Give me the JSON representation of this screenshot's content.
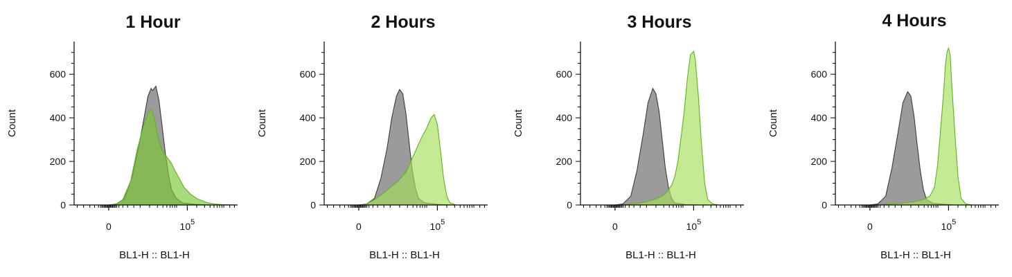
{
  "figure": {
    "panels": [
      {
        "title": "1 Hour"
      },
      {
        "title": "2 Hours"
      },
      {
        "title": "3 Hours"
      },
      {
        "title": "4 Hours"
      }
    ]
  },
  "chart_data": [
    {
      "type": "area",
      "title": "1 Hour",
      "xlabel": "BL1-H :: BL1-H",
      "ylabel": "Count",
      "x_scale": "biexponential",
      "xticks": [
        {
          "label": "0",
          "exp": ""
        },
        {
          "label": "10",
          "exp": "5"
        }
      ],
      "yticks": [
        0,
        200,
        400,
        600
      ],
      "ylim": [
        0,
        750
      ],
      "colors": {
        "control": "#8a8a8a",
        "stained": "#7cc832"
      },
      "series": [
        {
          "role": "control",
          "points": [
            [
              -22,
              0
            ],
            [
              0,
              0
            ],
            [
              5,
              5
            ],
            [
              10,
              30
            ],
            [
              15,
              130
            ],
            [
              20,
              300
            ],
            [
              23,
              420
            ],
            [
              25,
              500
            ],
            [
              27,
              535
            ],
            [
              28,
              525
            ],
            [
              30,
              545
            ],
            [
              32,
              480
            ],
            [
              34,
              360
            ],
            [
              36,
              240
            ],
            [
              38,
              140
            ],
            [
              40,
              70
            ],
            [
              43,
              30
            ],
            [
              47,
              10
            ],
            [
              55,
              3
            ],
            [
              65,
              0
            ],
            [
              82,
              0
            ]
          ]
        },
        {
          "role": "stained",
          "points": [
            [
              -22,
              0
            ],
            [
              0,
              0
            ],
            [
              5,
              4
            ],
            [
              9,
              25
            ],
            [
              14,
              110
            ],
            [
              18,
              250
            ],
            [
              22,
              360
            ],
            [
              25,
              420
            ],
            [
              27,
              440
            ],
            [
              29,
              400
            ],
            [
              31,
              320
            ],
            [
              34,
              250
            ],
            [
              37,
              220
            ],
            [
              40,
              190
            ],
            [
              42,
              160
            ],
            [
              45,
              120
            ],
            [
              48,
              80
            ],
            [
              52,
              50
            ],
            [
              56,
              30
            ],
            [
              60,
              18
            ],
            [
              63,
              10
            ],
            [
              67,
              5
            ],
            [
              72,
              2
            ],
            [
              82,
              0
            ]
          ]
        }
      ]
    },
    {
      "type": "area",
      "title": "2 Hours",
      "xlabel": "BL1-H :: BL1-H",
      "ylabel": "Count",
      "x_scale": "biexponential",
      "xticks": [
        {
          "label": "0",
          "exp": ""
        },
        {
          "label": "10",
          "exp": "5"
        }
      ],
      "yticks": [
        0,
        200,
        400,
        600
      ],
      "ylim": [
        0,
        750
      ],
      "colors": {
        "control": "#8a8a8a",
        "stained": "#a4e05a"
      },
      "series": [
        {
          "role": "control",
          "points": [
            [
              -22,
              0
            ],
            [
              0,
              0
            ],
            [
              5,
              5
            ],
            [
              10,
              30
            ],
            [
              14,
              120
            ],
            [
              18,
              260
            ],
            [
              21,
              400
            ],
            [
              24,
              500
            ],
            [
              26,
              530
            ],
            [
              28,
              510
            ],
            [
              30,
              420
            ],
            [
              32,
              290
            ],
            [
              34,
              160
            ],
            [
              36,
              80
            ],
            [
              38,
              30
            ],
            [
              42,
              10
            ],
            [
              50,
              3
            ],
            [
              60,
              0
            ],
            [
              82,
              0
            ]
          ]
        },
        {
          "role": "stained",
          "points": [
            [
              -22,
              0
            ],
            [
              0,
              0
            ],
            [
              5,
              5
            ],
            [
              10,
              25
            ],
            [
              15,
              50
            ],
            [
              20,
              80
            ],
            [
              25,
              110
            ],
            [
              30,
              150
            ],
            [
              35,
              230
            ],
            [
              40,
              310
            ],
            [
              43,
              350
            ],
            [
              46,
              400
            ],
            [
              48,
              415
            ],
            [
              50,
              370
            ],
            [
              52,
              250
            ],
            [
              54,
              120
            ],
            [
              56,
              40
            ],
            [
              58,
              10
            ],
            [
              62,
              0
            ],
            [
              82,
              0
            ]
          ]
        }
      ]
    },
    {
      "type": "area",
      "title": "3 Hours",
      "xlabel": "BL1-H :: BL1-H",
      "ylabel": "Count",
      "x_scale": "biexponential",
      "xticks": [
        {
          "label": "0",
          "exp": ""
        },
        {
          "label": "10",
          "exp": "5"
        }
      ],
      "yticks": [
        0,
        200,
        400,
        600
      ],
      "ylim": [
        0,
        750
      ],
      "colors": {
        "control": "#8a8a8a",
        "stained": "#a4e05a"
      },
      "series": [
        {
          "role": "control",
          "points": [
            [
              -22,
              0
            ],
            [
              0,
              0
            ],
            [
              5,
              5
            ],
            [
              10,
              40
            ],
            [
              14,
              160
            ],
            [
              18,
              330
            ],
            [
              21,
              470
            ],
            [
              24,
              535
            ],
            [
              26,
              510
            ],
            [
              28,
              430
            ],
            [
              30,
              300
            ],
            [
              32,
              170
            ],
            [
              34,
              80
            ],
            [
              36,
              30
            ],
            [
              38,
              10
            ],
            [
              45,
              2
            ],
            [
              55,
              0
            ],
            [
              82,
              0
            ]
          ]
        },
        {
          "role": "stained",
          "points": [
            [
              -22,
              0
            ],
            [
              0,
              0
            ],
            [
              8,
              3
            ],
            [
              15,
              8
            ],
            [
              20,
              15
            ],
            [
              25,
              25
            ],
            [
              30,
              40
            ],
            [
              33,
              60
            ],
            [
              36,
              90
            ],
            [
              38,
              130
            ],
            [
              40,
              200
            ],
            [
              42,
              310
            ],
            [
              44,
              430
            ],
            [
              46,
              580
            ],
            [
              48,
              690
            ],
            [
              50,
              705
            ],
            [
              51,
              670
            ],
            [
              53,
              500
            ],
            [
              55,
              280
            ],
            [
              57,
              100
            ],
            [
              59,
              25
            ],
            [
              62,
              5
            ],
            [
              66,
              0
            ],
            [
              82,
              0
            ]
          ]
        }
      ]
    },
    {
      "type": "area",
      "title": "4 Hours",
      "xlabel": "BL1-H :: BL1-H",
      "ylabel": "Count",
      "x_scale": "biexponential",
      "xticks": [
        {
          "label": "0",
          "exp": ""
        },
        {
          "label": "10",
          "exp": "5"
        }
      ],
      "yticks": [
        0,
        200,
        400,
        600
      ],
      "ylim": [
        0,
        750
      ],
      "colors": {
        "control": "#8a8a8a",
        "stained": "#a4e05a"
      },
      "series": [
        {
          "role": "control",
          "points": [
            [
              -22,
              0
            ],
            [
              0,
              0
            ],
            [
              5,
              5
            ],
            [
              10,
              40
            ],
            [
              14,
              170
            ],
            [
              18,
              340
            ],
            [
              21,
              470
            ],
            [
              24,
              520
            ],
            [
              26,
              500
            ],
            [
              28,
              410
            ],
            [
              30,
              280
            ],
            [
              32,
              160
            ],
            [
              34,
              70
            ],
            [
              36,
              25
            ],
            [
              40,
              8
            ],
            [
              48,
              3
            ],
            [
              55,
              0
            ],
            [
              82,
              0
            ]
          ]
        },
        {
          "role": "stained",
          "points": [
            [
              -22,
              0
            ],
            [
              0,
              0
            ],
            [
              10,
              3
            ],
            [
              20,
              8
            ],
            [
              28,
              15
            ],
            [
              34,
              25
            ],
            [
              38,
              40
            ],
            [
              41,
              80
            ],
            [
              43,
              180
            ],
            [
              45,
              350
            ],
            [
              47,
              530
            ],
            [
              48,
              640
            ],
            [
              49,
              700
            ],
            [
              50,
              720
            ],
            [
              51,
              690
            ],
            [
              52,
              560
            ],
            [
              54,
              330
            ],
            [
              56,
              130
            ],
            [
              58,
              30
            ],
            [
              61,
              5
            ],
            [
              65,
              0
            ],
            [
              82,
              0
            ]
          ]
        }
      ]
    }
  ]
}
